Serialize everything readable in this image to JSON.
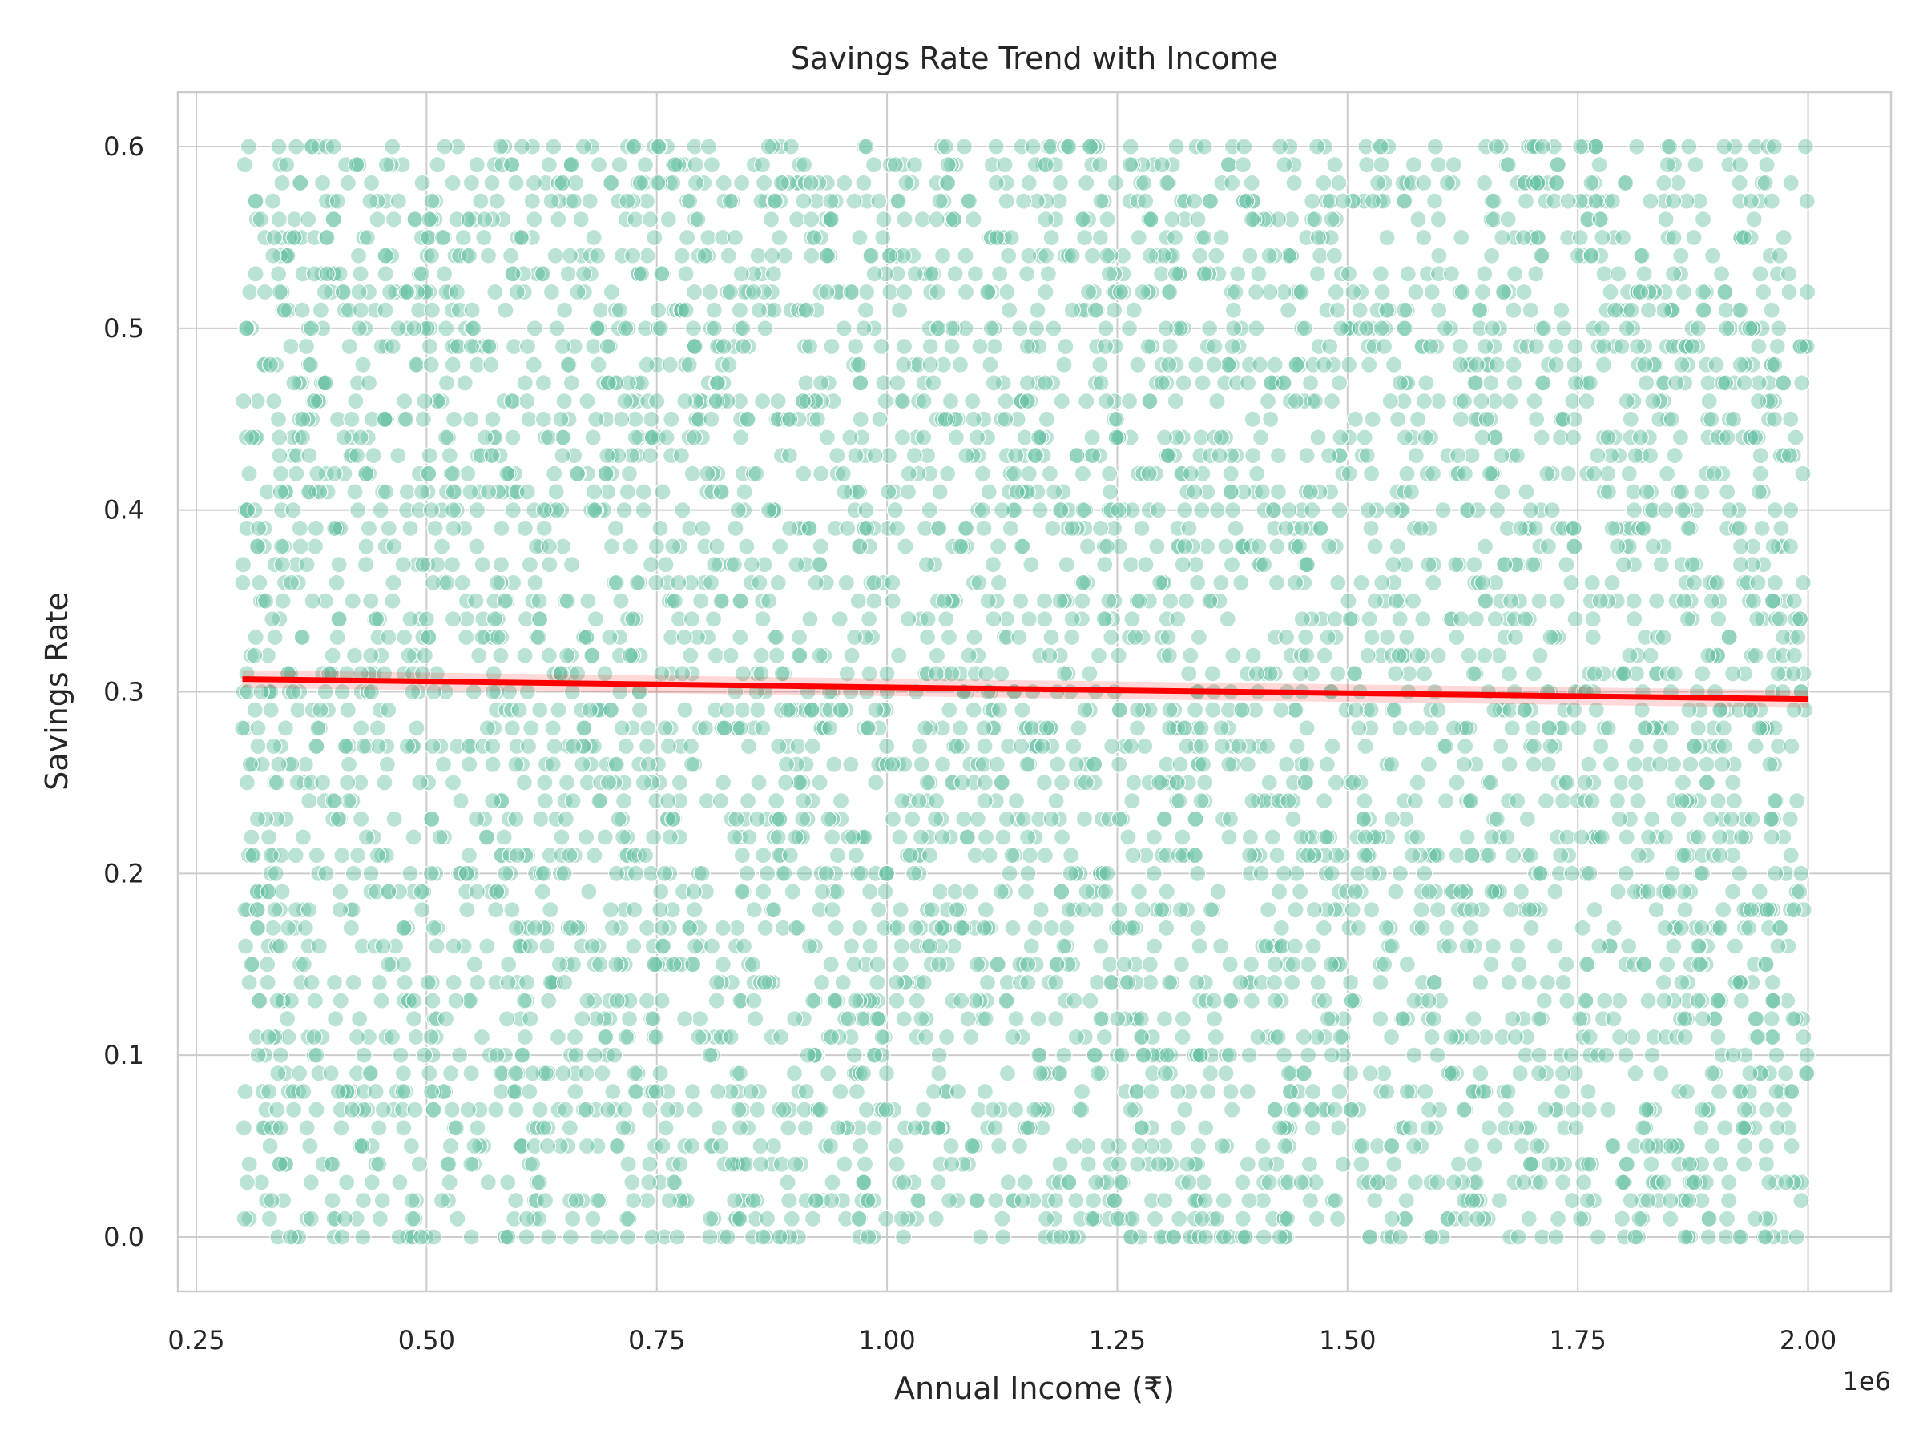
{
  "colors": {
    "points": "#66c2a5",
    "trend": "#ff0000",
    "grid": "#cccccc",
    "text": "#262626"
  },
  "chart_data": {
    "type": "scatter",
    "title": "Savings Rate Trend with Income",
    "xlabel": "Annual Income (₹)",
    "ylabel": "Savings Rate",
    "x_offset_label": "1e6",
    "xlim": [
      0.23,
      2.09
    ],
    "ylim": [
      -0.03,
      0.63
    ],
    "x_ticks": [
      0.25,
      0.5,
      0.75,
      1.0,
      1.25,
      1.5,
      1.75,
      2.0
    ],
    "x_tick_labels": [
      "0.25",
      "0.50",
      "0.75",
      "1.00",
      "1.25",
      "1.50",
      "1.75",
      "2.00"
    ],
    "y_ticks": [
      0.0,
      0.1,
      0.2,
      0.3,
      0.4,
      0.5,
      0.6
    ],
    "y_tick_labels": [
      "0.0",
      "0.1",
      "0.2",
      "0.3",
      "0.4",
      "0.5",
      "0.6"
    ],
    "grid": true,
    "scatter_series": {
      "x_range": [
        0.3,
        2.0
      ],
      "savings_rate_step": 0.01,
      "savings_rate_range": [
        0.0,
        0.6
      ],
      "opacity": 0.45
    },
    "trend_line": {
      "x": [
        0.3,
        2.0
      ],
      "y": [
        0.307,
        0.296
      ]
    }
  }
}
